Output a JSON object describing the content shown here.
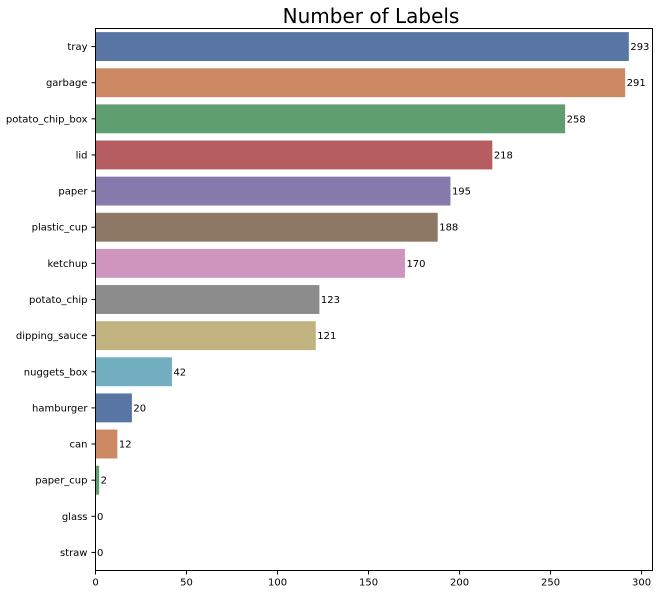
{
  "chart_data": {
    "type": "bar",
    "orientation": "horizontal",
    "title": "Number of Labels",
    "xlabel": "",
    "ylabel": "",
    "xlim": [
      0,
      306
    ],
    "xticks": [
      0,
      50,
      100,
      150,
      200,
      250,
      300
    ],
    "grid": false,
    "legend": "none",
    "categories": [
      "tray",
      "garbage",
      "potato_chip_box",
      "lid",
      "paper",
      "plastic_cup",
      "ketchup",
      "potato_chip",
      "dipping_sauce",
      "nuggets_box",
      "hamburger",
      "can",
      "paper_cup",
      "glass",
      "straw"
    ],
    "values": [
      293,
      291,
      258,
      218,
      195,
      188,
      170,
      123,
      121,
      42,
      20,
      12,
      2,
      0,
      0
    ],
    "colors": [
      "#5975a4",
      "#cc8963",
      "#5f9e6e",
      "#b55d60",
      "#857aab",
      "#8d7866",
      "#d095bf",
      "#8c8c8c",
      "#c1b37f",
      "#71aec0",
      "#5975a4",
      "#cc8963",
      "#5f9e6e",
      "#b55d60",
      "#857aab"
    ]
  }
}
